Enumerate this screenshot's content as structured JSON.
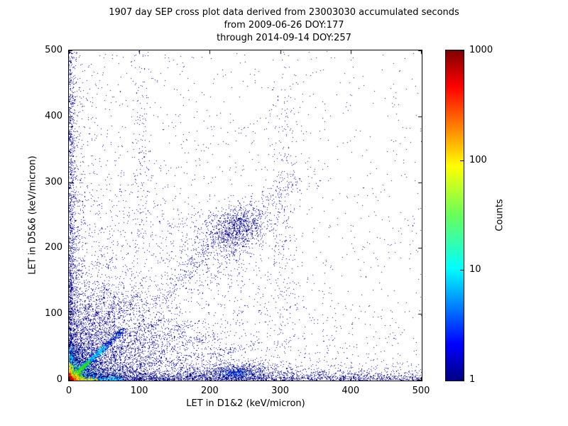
{
  "title": {
    "line1": "1907 day SEP cross plot data derived from 23003030 accumulated seconds",
    "line2": "from 2009-06-26 DOY:177",
    "line3": "through 2014-09-14 DOY:257"
  },
  "chart_data": {
    "type": "scatter",
    "title": "1907 day SEP cross plot data derived from 23003030 accumulated seconds\nfrom 2009-06-26 DOY:177\nthrough 2014-09-14 DOY:257",
    "xlabel": "LET in D1&2 (keV/micron)",
    "ylabel": "LET in D5&6 (keV/micron)",
    "xlim": [
      0,
      500
    ],
    "ylim": [
      0,
      500
    ],
    "xticks": [
      0,
      100,
      200,
      300,
      400,
      500
    ],
    "yticks": [
      0,
      100,
      200,
      300,
      400,
      500
    ],
    "grid": false,
    "legend": false,
    "colorbar": {
      "label": "Counts",
      "scale": "log",
      "min": 1,
      "max": 1000,
      "ticks": [
        1,
        10,
        100,
        1000
      ],
      "colormap": "jet",
      "jet_stops": [
        [
          0,
          "#000080"
        ],
        [
          0.11,
          "#0000ff"
        ],
        [
          0.34,
          "#00ffff"
        ],
        [
          0.5,
          "#66ff5c"
        ],
        [
          0.65,
          "#ffff00"
        ],
        [
          0.89,
          "#ff0000"
        ],
        [
          1,
          "#800000"
        ]
      ]
    },
    "summary": "2D density cross plot: hot core (counts up to ~1000, red/orange/yellow) at origin below ~20 keV/micron; cyan-blue diagonal band y=x out to ~70; horizontal band along y=0 out to x=500 with secondary blob near x=240; vertical band along x=0 up to y=500; fan of low-x rays; secondary diagonal cluster near (240,230); vertical sparse streak near x=305; isolated single-count navy points scattered to 500 on both axes.",
    "base_point_color": "#000089",
    "density_clusters": [
      {
        "type": "uniform",
        "n": 900,
        "xmin": 0,
        "xmax": 500,
        "ymin": 0,
        "ymax": 500,
        "color": "#000089"
      },
      {
        "type": "exp",
        "n": 2600,
        "sx": 150,
        "sy": 150,
        "color": "#000089"
      },
      {
        "type": "exp",
        "n": 1500,
        "sx": 60,
        "sy": 60,
        "color": "#000089"
      },
      {
        "type": "hband",
        "n": 3500,
        "xmin": 0,
        "xmax": 500,
        "bias": 2.0,
        "sy": 7,
        "color": "#000089"
      },
      {
        "type": "vband",
        "n": 2000,
        "ymin": 0,
        "ymax": 500,
        "bias": 2.0,
        "sx": 5,
        "color": "#000089"
      },
      {
        "type": "gauss",
        "n": 600,
        "cx": 238,
        "cy": 13,
        "sx": 28,
        "sy": 7,
        "color": "#000089"
      },
      {
        "type": "gauss",
        "n": 300,
        "cx": 236,
        "cy": 11,
        "sx": 13,
        "sy": 4,
        "color": "#0030d8"
      },
      {
        "type": "gauss",
        "n": 800,
        "cx": 240,
        "cy": 232,
        "sx": 20,
        "sy": 15,
        "color": "#000089"
      },
      {
        "type": "gauss",
        "n": 450,
        "cx": 208,
        "cy": 203,
        "sx": 34,
        "sy": 28,
        "color": "#000089"
      },
      {
        "type": "diag",
        "n": 650,
        "len": 320,
        "slope": 0.97,
        "jx": 7,
        "jy": 12,
        "color": "#000089"
      },
      {
        "type": "diag",
        "n": 300,
        "len": 55,
        "slope": 2.6,
        "jx": 3,
        "jy": 9,
        "color": "#000089"
      },
      {
        "type": "diag",
        "n": 260,
        "len": 32,
        "slope": 4.2,
        "jx": 2.5,
        "jy": 10,
        "color": "#000089"
      },
      {
        "type": "diag",
        "n": 300,
        "len": 72,
        "slope": 1.8,
        "jx": 3,
        "jy": 8,
        "color": "#000089"
      },
      {
        "type": "diag",
        "n": 300,
        "len": 95,
        "slope": 1.35,
        "jx": 3.5,
        "jy": 8,
        "color": "#000089"
      },
      {
        "type": "diag",
        "n": 320,
        "len": 135,
        "slope": 0.7,
        "jx": 4,
        "jy": 7,
        "color": "#000089"
      },
      {
        "type": "diag",
        "n": 300,
        "len": 170,
        "slope": 0.5,
        "jx": 4,
        "jy": 6,
        "color": "#000089"
      },
      {
        "type": "diag",
        "n": 280,
        "len": 210,
        "slope": 0.33,
        "jx": 4,
        "jy": 5,
        "color": "#000089"
      },
      {
        "type": "diag",
        "n": 260,
        "len": 270,
        "slope": 0.2,
        "jx": 4,
        "jy": 4,
        "color": "#000089"
      },
      {
        "type": "gauss",
        "n": 280,
        "cx": 307,
        "cy": 260,
        "sx": 9,
        "sy": 150,
        "color": "#000089"
      },
      {
        "type": "gauss",
        "n": 160,
        "cx": 103,
        "cy": 310,
        "sx": 6,
        "sy": 150,
        "color": "#000089"
      },
      {
        "type": "hband",
        "n": 450,
        "xmin": 0,
        "xmax": 75,
        "bias": 1.5,
        "sy": 2.5,
        "color": "#00c3ff"
      },
      {
        "type": "vband",
        "n": 300,
        "ymin": 0,
        "ymax": 50,
        "bias": 1.5,
        "sx": 2.2,
        "color": "#00c3ff"
      },
      {
        "type": "diag",
        "n": 800,
        "len": 78,
        "slope": 1.0,
        "jx": 2.6,
        "jy": 2.6,
        "color": "#0020c8"
      },
      {
        "type": "exp",
        "n": 900,
        "sx": 14,
        "sy": 14,
        "color": "#0020c8"
      },
      {
        "type": "diag",
        "n": 650,
        "len": 50,
        "slope": 1.0,
        "jx": 1.9,
        "jy": 1.9,
        "color": "#00c3ff"
      },
      {
        "type": "exp",
        "n": 800,
        "sx": 9,
        "sy": 9,
        "color": "#00c3ff"
      },
      {
        "type": "exp",
        "n": 700,
        "sx": 6.5,
        "sy": 6.5,
        "color": "#2ee000"
      },
      {
        "type": "diag",
        "n": 300,
        "len": 28,
        "slope": 1.0,
        "jx": 1.5,
        "jy": 1.5,
        "color": "#2ee000"
      },
      {
        "type": "hband",
        "n": 200,
        "xmin": 0,
        "xmax": 40,
        "bias": 1.4,
        "sy": 1.6,
        "color": "#ffe100"
      },
      {
        "type": "vband",
        "n": 150,
        "ymin": 0,
        "ymax": 26,
        "bias": 1.4,
        "sx": 1.4,
        "color": "#ffe100"
      },
      {
        "type": "exp",
        "n": 650,
        "sx": 4.4,
        "sy": 4.4,
        "color": "#ffe100"
      },
      {
        "type": "exp",
        "n": 550,
        "sx": 2.9,
        "sy": 2.9,
        "color": "#ff7d00"
      },
      {
        "type": "exp",
        "n": 450,
        "sx": 1.7,
        "sy": 1.7,
        "color": "#d40000"
      }
    ]
  }
}
